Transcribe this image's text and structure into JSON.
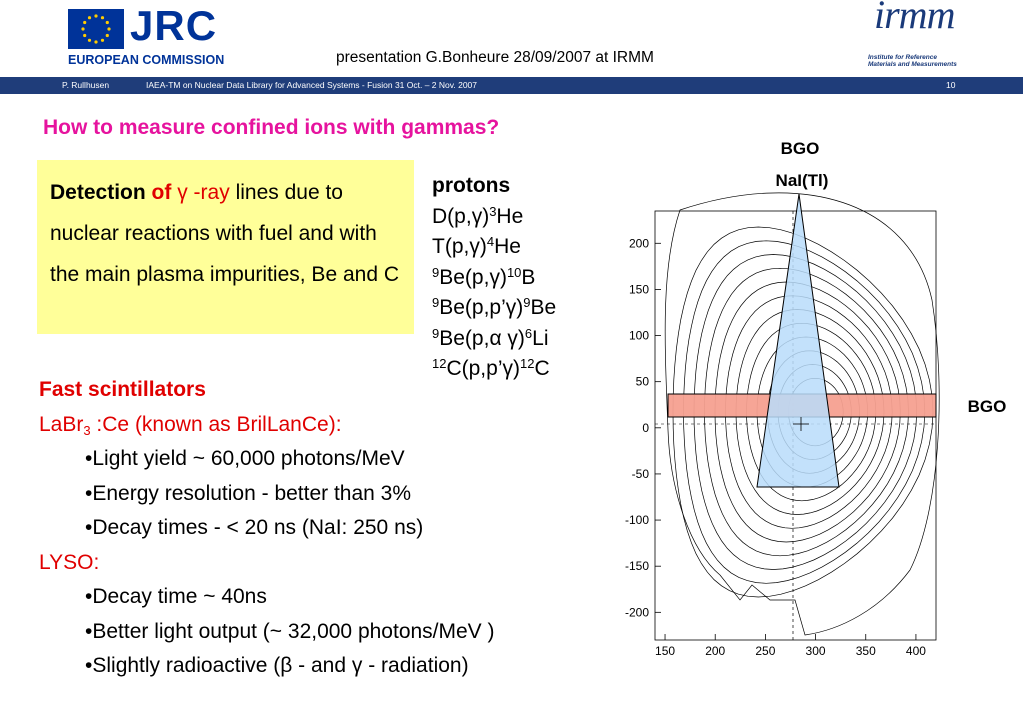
{
  "header": {
    "jrc_name": "JRC",
    "jrc_org": "EUROPEAN COMMISSION",
    "title": "presentation G.Bonheure 28/09/2007 at IRMM",
    "irmm_name": "irmm",
    "irmm_sub_1": "Institute for Reference",
    "irmm_sub_2": "Materials and Measurements"
  },
  "banner": {
    "author": "P. Rullhusen",
    "event": "IAEA-TM on Nuclear Data Library for Advanced Systems - Fusion   31 Oct. –  2 Nov. 2007",
    "page": "10"
  },
  "slide_title": "How to measure confined ions with gammas?",
  "detection": {
    "word1": "Detection",
    "of": "of",
    "gamma": "γ",
    "ray": "-ray",
    "rest": "lines due to nuclear reactions with fuel and with the main plasma impurities, Be and C"
  },
  "protons": {
    "heading": "protons",
    "r1": [
      "D(p,",
      "γ",
      ")",
      "3",
      "He"
    ],
    "r2": [
      "T(p,",
      "γ",
      ")",
      "4",
      "He"
    ],
    "r3": [
      "9",
      "Be(p,",
      "γ",
      ")",
      "10",
      "B"
    ],
    "r4": [
      "9",
      "Be(p,p’",
      "γ",
      ")",
      "9",
      "Be"
    ],
    "r5": [
      "9",
      "Be(p,",
      "α γ",
      ")",
      "6",
      "Li"
    ],
    "r6": [
      "12",
      "C(p,p’",
      "γ",
      ")",
      "12",
      "C"
    ]
  },
  "scintillators": {
    "heading": "Fast scintillators",
    "labr_main": "LaBr",
    "labr_sub": "3",
    "labr_rest": " :Ce  (known as BrilLanCe):",
    "b1": "•Light yield ~ 60,000 photons/MeV",
    "b2": "•Energy resolution - better than 3%",
    "b3": "•Decay times - < 20 ns (NaI:  250 ns)",
    "lyso": "LYSO:",
    "b4": "•Decay time ~ 40ns",
    "b5": "•Better light output (~ 32,000 photons/MeV )",
    "b6": "•Slightly radioactive (β - and γ - radiation)"
  },
  "figure": {
    "label_bgo_top": "BGO",
    "label_nai": "NaI(Tl)",
    "label_bgo_side": "BGO",
    "y_ticks": [
      "200",
      "150",
      "100",
      "50",
      "0",
      "-50",
      "-100",
      "-150",
      "-200"
    ],
    "x_ticks": [
      "150",
      "200",
      "250",
      "300",
      "350",
      "400"
    ],
    "x_range": [
      140,
      420
    ],
    "y_range": [
      -230,
      235
    ],
    "colors": {
      "label_red": "#e00000",
      "nai_fill": "#b8dcfa",
      "bgo_fill": "#f5a090"
    }
  }
}
